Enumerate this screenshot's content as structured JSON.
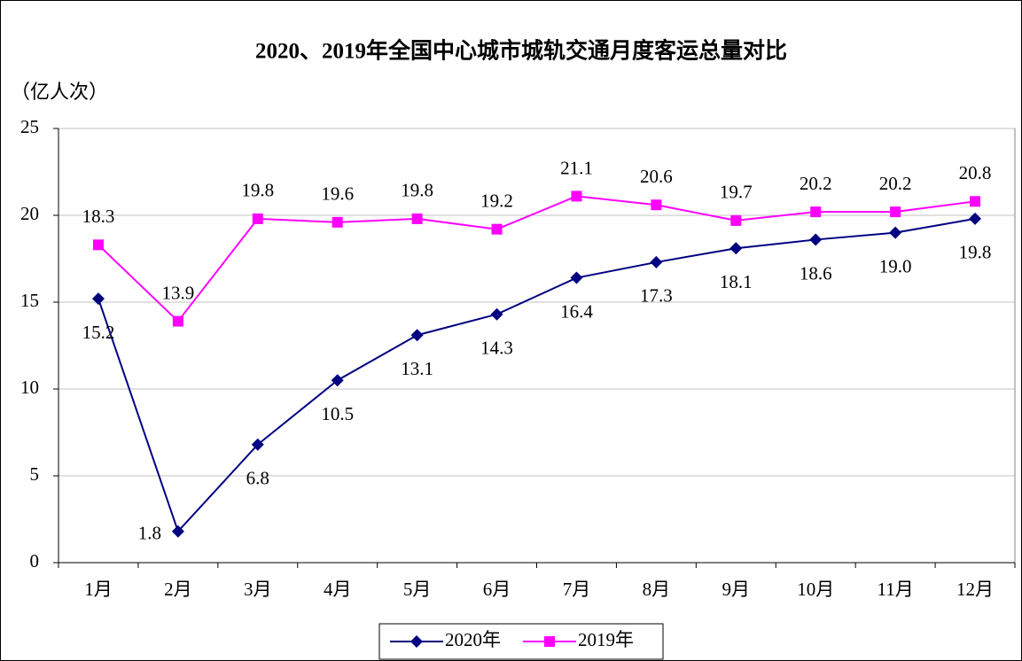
{
  "chart_data": {
    "type": "line",
    "title": "2020、2019年全国中心城市城轨交通月度客运总量对比",
    "y_label": "（亿人次）",
    "categories": [
      "1月",
      "2月",
      "3月",
      "4月",
      "5月",
      "6月",
      "7月",
      "8月",
      "9月",
      "10月",
      "11月",
      "12月"
    ],
    "series": [
      {
        "name": "2020年",
        "color": "#000080",
        "marker": "diamond",
        "values": [
          15.2,
          1.8,
          6.8,
          10.5,
          13.1,
          14.3,
          16.4,
          17.3,
          18.1,
          18.6,
          19.0,
          19.8
        ],
        "value_labels": [
          "15.2",
          "1.8",
          "6.8",
          "10.5",
          "13.1",
          "14.3",
          "16.4",
          "17.3",
          "18.1",
          "18.6",
          "19.0",
          "19.8"
        ]
      },
      {
        "name": "2019年",
        "color": "#ff00ff",
        "marker": "square",
        "values": [
          18.3,
          13.9,
          19.8,
          19.6,
          19.8,
          19.2,
          21.1,
          20.6,
          19.7,
          20.2,
          20.2,
          20.8
        ]
      }
    ],
    "ylim": [
      0,
      25
    ],
    "yticks": [
      0,
      5,
      10,
      15,
      20,
      25
    ],
    "grid": true,
    "legend": "bottom"
  }
}
